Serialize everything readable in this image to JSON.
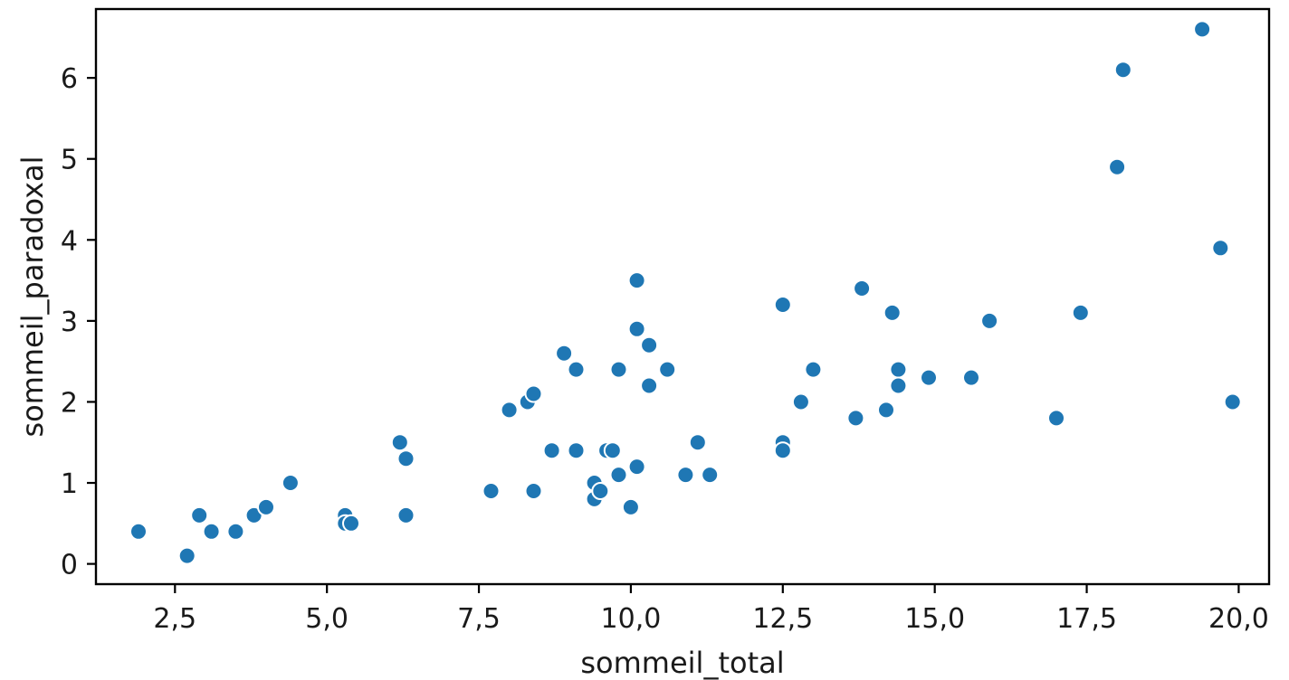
{
  "chart_data": {
    "type": "scatter",
    "title": "",
    "xlabel": "sommeil_total",
    "ylabel": "sommeil_paradoxal",
    "xlim": [
      1.2,
      20.5
    ],
    "ylim": [
      -0.25,
      6.85
    ],
    "xticks": [
      2.5,
      5.0,
      7.5,
      10.0,
      12.5,
      15.0,
      17.5,
      20.0
    ],
    "xtick_labels": [
      "2,5",
      "5,0",
      "7,5",
      "10,0",
      "12,5",
      "15,0",
      "17,5",
      "20,0"
    ],
    "yticks": [
      0,
      1,
      2,
      3,
      4,
      5,
      6
    ],
    "ytick_labels": [
      "0",
      "1",
      "2",
      "3",
      "4",
      "5",
      "6"
    ],
    "grid": false,
    "point_color": "#1f77b4",
    "x": [
      1.9,
      2.7,
      2.9,
      3.1,
      3.5,
      3.8,
      4.0,
      4.4,
      5.3,
      5.3,
      5.4,
      6.2,
      6.3,
      6.3,
      7.7,
      8.0,
      8.3,
      8.4,
      8.4,
      8.7,
      8.9,
      9.1,
      9.1,
      9.4,
      9.4,
      9.5,
      9.6,
      9.7,
      9.8,
      9.8,
      10.0,
      10.1,
      10.1,
      10.1,
      10.3,
      10.3,
      10.6,
      10.9,
      11.1,
      11.3,
      12.5,
      12.5,
      12.5,
      12.8,
      13.0,
      13.7,
      13.8,
      14.2,
      14.3,
      14.4,
      14.4,
      14.9,
      15.6,
      15.9,
      17.0,
      17.4,
      18.0,
      18.1,
      19.4,
      19.7,
      19.9
    ],
    "y": [
      0.4,
      0.1,
      0.6,
      0.4,
      0.4,
      0.6,
      0.7,
      1.0,
      0.6,
      0.5,
      0.5,
      1.5,
      1.3,
      0.6,
      0.9,
      1.9,
      2.0,
      2.1,
      0.9,
      1.4,
      2.6,
      2.4,
      1.4,
      0.8,
      1.0,
      0.9,
      1.4,
      1.4,
      2.4,
      1.1,
      0.7,
      3.5,
      2.9,
      1.2,
      2.7,
      2.2,
      2.4,
      1.1,
      1.5,
      1.1,
      3.2,
      1.5,
      1.4,
      2.0,
      2.4,
      1.8,
      3.4,
      1.9,
      3.1,
      2.4,
      2.2,
      2.3,
      2.3,
      3.0,
      1.8,
      3.1,
      4.9,
      6.1,
      6.6,
      3.9,
      2.0
    ]
  }
}
